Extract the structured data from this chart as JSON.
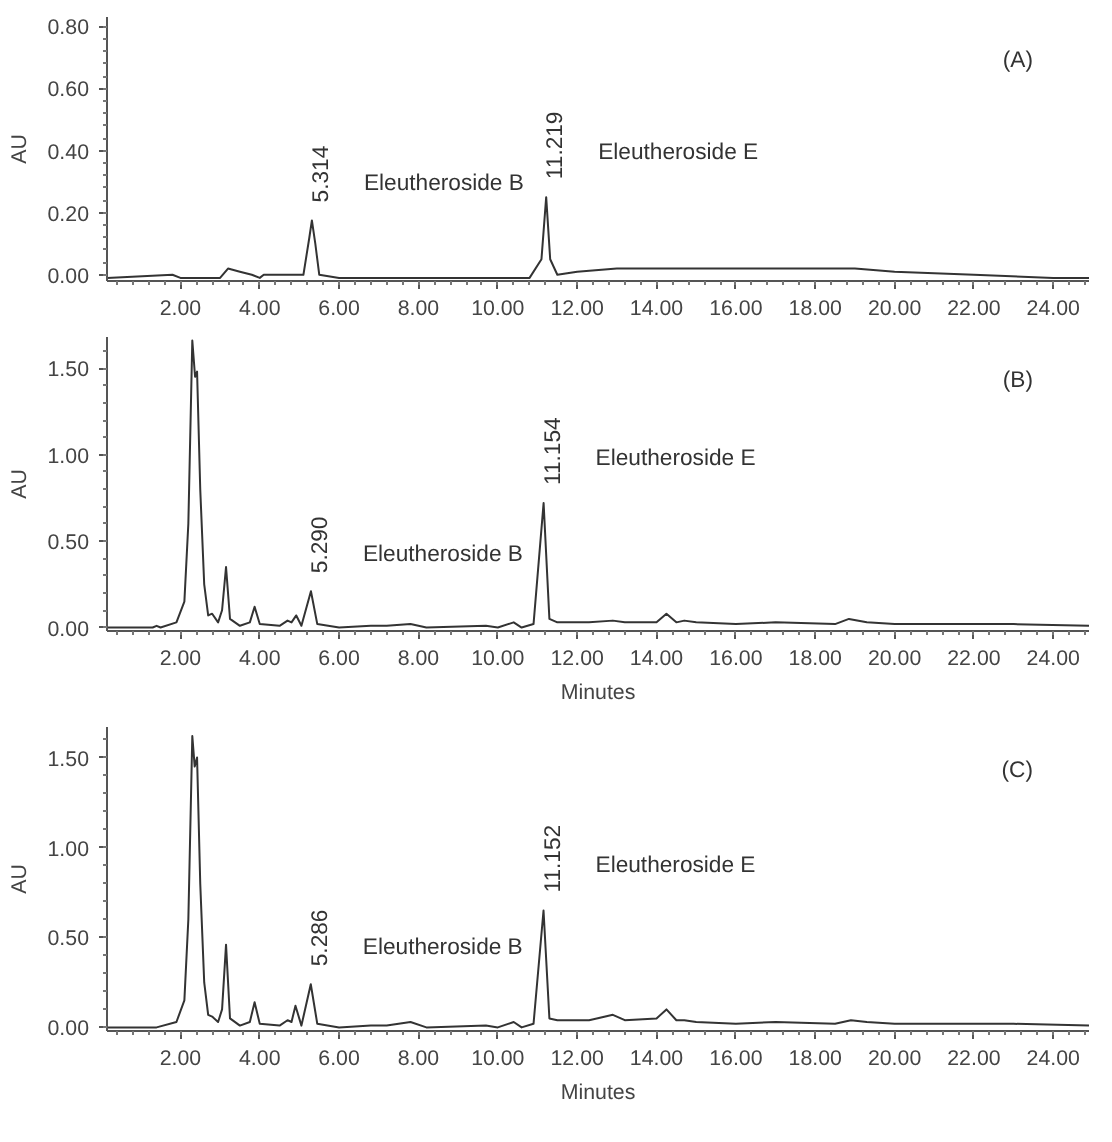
{
  "chart_data": [
    {
      "type": "line",
      "ylabel": "AU",
      "xlim": [
        0.15,
        24.9
      ],
      "ylim": [
        -0.02,
        0.83
      ],
      "grid": false,
      "marker": "none",
      "line_style": "solid",
      "xticks": [
        {
          "value": 2,
          "label": "2.00"
        },
        {
          "value": 4,
          "label": "4.00"
        },
        {
          "value": 6,
          "label": "6.00"
        },
        {
          "value": 8,
          "label": "8.00"
        },
        {
          "value": 10,
          "label": "10.00"
        },
        {
          "value": 12,
          "label": "12.00"
        },
        {
          "value": 14,
          "label": "14.00"
        },
        {
          "value": 16,
          "label": "16.00"
        },
        {
          "value": 18,
          "label": "18.00"
        },
        {
          "value": 20,
          "label": "20.00"
        },
        {
          "value": 22,
          "label": "22.00"
        },
        {
          "value": 24,
          "label": "24.00"
        }
      ],
      "yticks": [
        {
          "value": 0,
          "label": "0.00"
        },
        {
          "value": 0.2,
          "label": "0.20"
        },
        {
          "value": 0.4,
          "label": "0.40"
        },
        {
          "value": 0.6,
          "label": "0.60"
        },
        {
          "value": 0.8,
          "label": "0.80"
        }
      ],
      "series": [
        {
          "color": "#333333",
          "x": [
            0.15,
            1.8,
            2.0,
            3.0,
            3.2,
            3.5,
            3.8,
            4.0,
            4.1,
            4.5,
            5.1,
            5.25,
            5.314,
            5.4,
            5.5,
            6.0,
            9.0,
            10.8,
            11.1,
            11.219,
            11.32,
            11.5,
            12.0,
            13.0,
            14.0,
            17.0,
            19.0,
            20.0,
            22.0,
            24.0,
            24.9
          ],
          "values": [
            -0.01,
            0.0,
            -0.01,
            -0.01,
            0.02,
            0.01,
            0.0,
            -0.01,
            0.0,
            0.0,
            0.0,
            0.12,
            0.175,
            0.1,
            0.0,
            -0.01,
            -0.01,
            -0.01,
            0.05,
            0.25,
            0.05,
            0.0,
            0.01,
            0.02,
            0.02,
            0.02,
            0.02,
            0.01,
            0.0,
            -0.01,
            -0.01
          ]
        }
      ],
      "annotations": [
        "(A)",
        {
          "text": "5.314",
          "x": 5.314,
          "y": 0.175
        },
        {
          "text": "Eleutheroside B",
          "x": 5.314,
          "y": 0.175
        },
        {
          "text": "11.219",
          "x": 11.219,
          "y": 0.25
        },
        {
          "text": "Eleutheroside E",
          "x": 11.219,
          "y": 0.25
        }
      ]
    },
    {
      "type": "line",
      "xlabel": "Minutes",
      "ylabel": "AU",
      "xlim": [
        0.15,
        24.9
      ],
      "ylim": [
        -0.02,
        1.68
      ],
      "grid": false,
      "marker": "none",
      "line_style": "solid",
      "xticks": [
        {
          "value": 2,
          "label": "2.00"
        },
        {
          "value": 4,
          "label": "4.00"
        },
        {
          "value": 6,
          "label": "6.00"
        },
        {
          "value": 8,
          "label": "8.00"
        },
        {
          "value": 10,
          "label": "10.00"
        },
        {
          "value": 12,
          "label": "12.00"
        },
        {
          "value": 14,
          "label": "14.00"
        },
        {
          "value": 16,
          "label": "16.00"
        },
        {
          "value": 18,
          "label": "18.00"
        },
        {
          "value": 20,
          "label": "20.00"
        },
        {
          "value": 22,
          "label": "22.00"
        },
        {
          "value": 24,
          "label": "24.00"
        }
      ],
      "yticks": [
        {
          "value": 0,
          "label": "0.00"
        },
        {
          "value": 0.5,
          "label": "0.50"
        },
        {
          "value": 1.0,
          "label": "1.00"
        },
        {
          "value": 1.5,
          "label": "1.50"
        }
      ],
      "series": [
        {
          "color": "#333333",
          "x": [
            0.15,
            1.3,
            1.4,
            1.5,
            1.9,
            2.1,
            2.2,
            2.3,
            2.37,
            2.42,
            2.5,
            2.6,
            2.7,
            2.8,
            2.95,
            3.05,
            3.15,
            3.25,
            3.5,
            3.75,
            3.87,
            4.0,
            4.5,
            4.7,
            4.8,
            4.92,
            5.05,
            5.29,
            5.45,
            6.0,
            6.8,
            7.2,
            7.8,
            8.2,
            9.7,
            10.0,
            10.4,
            10.6,
            10.9,
            11.154,
            11.3,
            11.5,
            12.3,
            12.9,
            13.2,
            14.0,
            14.25,
            14.5,
            14.7,
            15.0,
            16.0,
            17.0,
            18.5,
            18.85,
            19.3,
            20.0,
            23.0,
            24.9
          ],
          "values": [
            0.0,
            0.0,
            0.01,
            0.0,
            0.03,
            0.15,
            0.6,
            1.66,
            1.45,
            1.48,
            0.8,
            0.25,
            0.07,
            0.08,
            0.03,
            0.1,
            0.35,
            0.05,
            0.01,
            0.03,
            0.12,
            0.02,
            0.01,
            0.04,
            0.03,
            0.07,
            0.01,
            0.21,
            0.02,
            0.0,
            0.01,
            0.01,
            0.02,
            0.0,
            0.01,
            0.0,
            0.03,
            0.0,
            0.02,
            0.72,
            0.05,
            0.03,
            0.03,
            0.04,
            0.03,
            0.03,
            0.08,
            0.03,
            0.04,
            0.03,
            0.02,
            0.03,
            0.02,
            0.05,
            0.03,
            0.02,
            0.02,
            0.01
          ]
        }
      ],
      "annotations": [
        "(B)",
        {
          "text": "5.290",
          "x": 5.29,
          "y": 0.21
        },
        {
          "text": "Eleutheroside B",
          "x": 5.29,
          "y": 0.21
        },
        {
          "text": "11.154",
          "x": 11.154,
          "y": 0.72
        },
        {
          "text": "Eleutheroside E",
          "x": 11.154,
          "y": 0.72
        }
      ]
    },
    {
      "type": "line",
      "xlabel": "Minutes",
      "ylabel": "AU",
      "xlim": [
        0.15,
        24.9
      ],
      "ylim": [
        -0.02,
        1.67
      ],
      "grid": false,
      "marker": "none",
      "line_style": "solid",
      "xticks": [
        {
          "value": 2,
          "label": "2.00"
        },
        {
          "value": 4,
          "label": "4.00"
        },
        {
          "value": 6,
          "label": "6.00"
        },
        {
          "value": 8,
          "label": "8.00"
        },
        {
          "value": 10,
          "label": "10.00"
        },
        {
          "value": 12,
          "label": "12.00"
        },
        {
          "value": 14,
          "label": "14.00"
        },
        {
          "value": 16,
          "label": "16.00"
        },
        {
          "value": 18,
          "label": "18.00"
        },
        {
          "value": 20,
          "label": "20.00"
        },
        {
          "value": 22,
          "label": "22.00"
        },
        {
          "value": 24,
          "label": "24.00"
        }
      ],
      "yticks": [
        {
          "value": 0,
          "label": "0.00"
        },
        {
          "value": 0.5,
          "label": "0.50"
        },
        {
          "value": 1.0,
          "label": "1.00"
        },
        {
          "value": 1.5,
          "label": "1.50"
        }
      ],
      "series": [
        {
          "color": "#333333",
          "x": [
            0.15,
            1.4,
            1.9,
            2.1,
            2.2,
            2.3,
            2.36,
            2.42,
            2.5,
            2.6,
            2.7,
            2.8,
            2.95,
            3.05,
            3.15,
            3.25,
            3.5,
            3.75,
            3.87,
            4.0,
            4.5,
            4.7,
            4.8,
            4.9,
            5.05,
            5.286,
            5.45,
            6.0,
            6.8,
            7.2,
            7.8,
            8.2,
            9.7,
            10.0,
            10.4,
            10.6,
            10.9,
            11.152,
            11.3,
            11.5,
            12.3,
            12.9,
            13.2,
            14.0,
            14.25,
            14.5,
            14.7,
            15.0,
            16.0,
            17.0,
            18.5,
            18.9,
            19.3,
            20.0,
            23.0,
            24.9
          ],
          "values": [
            0.0,
            0.0,
            0.03,
            0.15,
            0.6,
            1.62,
            1.45,
            1.5,
            0.8,
            0.25,
            0.07,
            0.06,
            0.03,
            0.1,
            0.46,
            0.05,
            0.01,
            0.03,
            0.14,
            0.02,
            0.01,
            0.04,
            0.03,
            0.12,
            0.01,
            0.24,
            0.02,
            0.0,
            0.01,
            0.01,
            0.03,
            0.0,
            0.01,
            0.0,
            0.03,
            0.0,
            0.02,
            0.65,
            0.05,
            0.04,
            0.04,
            0.07,
            0.04,
            0.05,
            0.1,
            0.04,
            0.04,
            0.03,
            0.02,
            0.03,
            0.02,
            0.04,
            0.03,
            0.02,
            0.02,
            0.01
          ]
        }
      ],
      "annotations": [
        "(C)",
        {
          "text": "5.286",
          "x": 5.286,
          "y": 0.24
        },
        {
          "text": "Eleutheroside B",
          "x": 5.286,
          "y": 0.24
        },
        {
          "text": "11.152",
          "x": 11.152,
          "y": 0.65
        },
        {
          "text": "Eleutheroside E",
          "x": 11.152,
          "y": 0.65
        }
      ]
    }
  ]
}
